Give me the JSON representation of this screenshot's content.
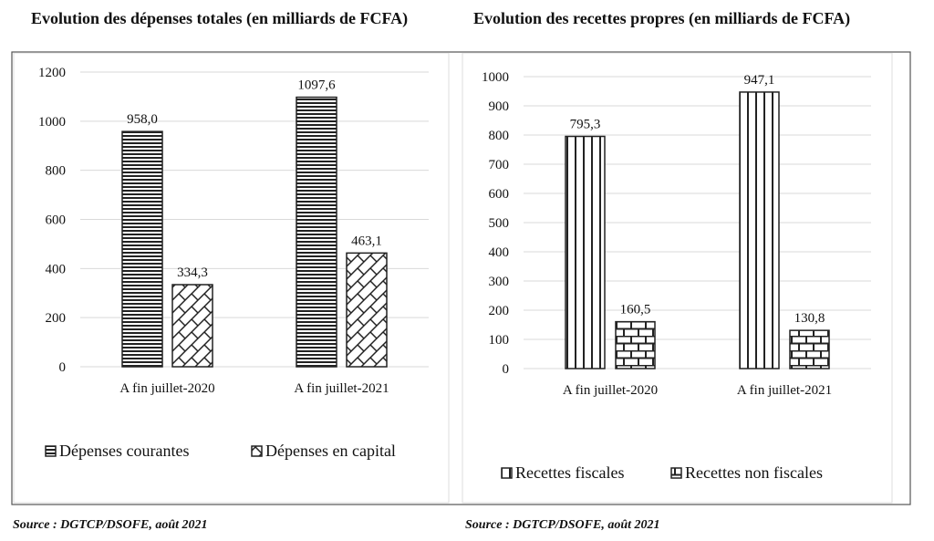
{
  "chart_data": [
    {
      "type": "bar",
      "title": "Evolution des dépenses totales (en milliards de FCFA)",
      "categories": [
        "A fin juillet-2020",
        "A fin juillet-2021"
      ],
      "series": [
        {
          "name": "Dépenses courantes",
          "values": [
            958.0,
            1097.6
          ],
          "labels": [
            "958,0",
            "1097,6"
          ],
          "pattern": "horizontal-lines"
        },
        {
          "name": "Dépenses en capital",
          "values": [
            334.3,
            463.1
          ],
          "labels": [
            "334,3",
            "463,1"
          ],
          "pattern": "crosshatch"
        }
      ],
      "yticks": [
        "0",
        "200",
        "400",
        "600",
        "800",
        "1000",
        "1200"
      ],
      "ylim": [
        0,
        1200
      ],
      "grid": true,
      "legend": "bottom",
      "source": "Source : DGTCP/DSOFE, août 2021"
    },
    {
      "type": "bar",
      "title": "Evolution des recettes propres (en milliards de FCFA)",
      "categories": [
        "A fin juillet-2020",
        "A fin juillet-2021"
      ],
      "series": [
        {
          "name": "Recettes fiscales",
          "values": [
            795.3,
            947.1
          ],
          "labels": [
            "795,3",
            "947,1"
          ],
          "pattern": "vertical-lines"
        },
        {
          "name": "Recettes non fiscales",
          "values": [
            160.5,
            130.8
          ],
          "labels": [
            "160,5",
            "130,8"
          ],
          "pattern": "bricks"
        }
      ],
      "yticks": [
        "0",
        "100",
        "200",
        "300",
        "400",
        "500",
        "600",
        "700",
        "800",
        "900",
        "1000"
      ],
      "ylim": [
        0,
        1000
      ],
      "grid": true,
      "legend": "bottom",
      "source": "Source : DGTCP/DSOFE, août 2021"
    }
  ]
}
